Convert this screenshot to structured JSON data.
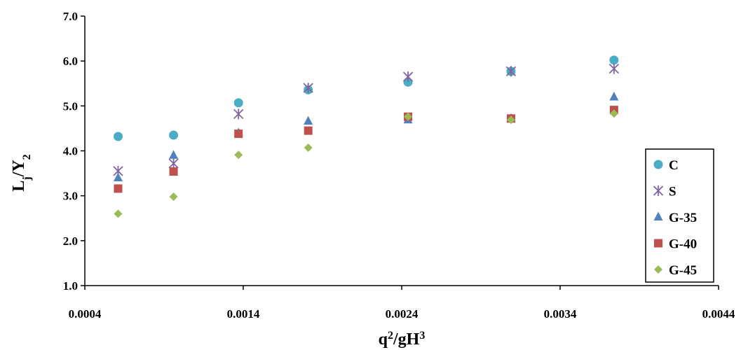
{
  "chart_data": {
    "type": "scatter",
    "title": "",
    "xlabel": {
      "base": "q",
      "sup1": "2",
      "mid": "/gH",
      "sup2": "3"
    },
    "ylabel": {
      "base": "L",
      "sub1": "j",
      "mid": "/Y",
      "sub2": "2"
    },
    "xlim": [
      0.0004,
      0.0044
    ],
    "ylim": [
      1.0,
      7.0
    ],
    "xticks": [
      0.0004,
      0.0014,
      0.0024,
      0.0034,
      0.0044
    ],
    "yticks": [
      1.0,
      2.0,
      3.0,
      4.0,
      5.0,
      6.0,
      7.0
    ],
    "xtick_labels": [
      "0.0004",
      "0.0014",
      "0.0024",
      "0.0034",
      "0.0044"
    ],
    "ytick_labels": [
      "1.0",
      "2.0",
      "3.0",
      "4.0",
      "5.0",
      "6.0",
      "7.0"
    ],
    "grid": false,
    "legend_position": "right",
    "series": [
      {
        "name": "C",
        "marker": "circle",
        "color": "#4BACC6",
        "x": [
          0.00061,
          0.00096,
          0.00137,
          0.00181,
          0.00244,
          0.00309,
          0.00374
        ],
        "y": [
          4.32,
          4.35,
          5.07,
          5.36,
          5.53,
          5.77,
          6.02
        ]
      },
      {
        "name": "S",
        "marker": "star",
        "color": "#8064A2",
        "x": [
          0.00061,
          0.00096,
          0.00137,
          0.00181,
          0.00244,
          0.00309,
          0.00374
        ],
        "y": [
          3.55,
          3.72,
          4.82,
          5.4,
          5.65,
          5.77,
          5.83
        ]
      },
      {
        "name": "G-35",
        "marker": "triangle",
        "color": "#4F81BD",
        "x": [
          0.00061,
          0.00096,
          0.00137,
          0.00181,
          0.00244,
          0.00309,
          0.00374
        ],
        "y": [
          3.4,
          3.9,
          4.4,
          4.66,
          4.69,
          4.72,
          5.2
        ]
      },
      {
        "name": "G-40",
        "marker": "square",
        "color": "#C0504D",
        "x": [
          0.00061,
          0.00096,
          0.00137,
          0.00181,
          0.00244,
          0.00309,
          0.00374
        ],
        "y": [
          3.16,
          3.54,
          4.38,
          4.45,
          4.76,
          4.72,
          4.91
        ]
      },
      {
        "name": "G-45",
        "marker": "diamond",
        "color": "#9BBB59",
        "x": [
          0.00061,
          0.00096,
          0.00137,
          0.00181,
          0.00244,
          0.00309,
          0.00374
        ],
        "y": [
          2.6,
          2.98,
          3.91,
          4.07,
          4.76,
          4.69,
          4.83
        ]
      }
    ]
  }
}
